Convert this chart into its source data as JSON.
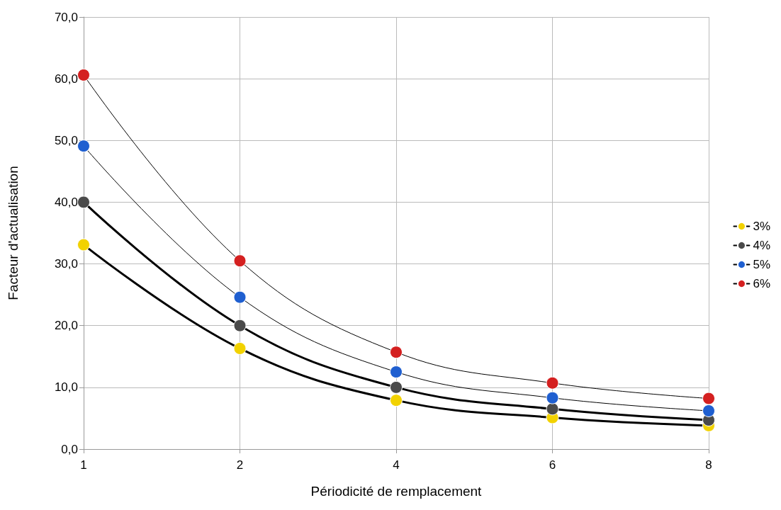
{
  "chart_data": {
    "type": "line",
    "xlabel": "Périodicité de remplacement",
    "ylabel": "Facteur d'actualisation",
    "categories": [
      "1",
      "2",
      "4",
      "6",
      "8"
    ],
    "series": [
      {
        "name": "3%",
        "color": "#f2d200",
        "values": [
          33.1,
          16.3,
          7.9,
          5.1,
          3.8
        ]
      },
      {
        "name": "4%",
        "color": "#4a4a4a",
        "values": [
          40.0,
          20.0,
          10.0,
          6.5,
          4.7
        ]
      },
      {
        "name": "5%",
        "color": "#1f5fd0",
        "values": [
          49.1,
          24.6,
          12.5,
          8.3,
          6.2
        ]
      },
      {
        "name": "6%",
        "color": "#d42020",
        "values": [
          60.6,
          30.5,
          15.7,
          10.7,
          8.2
        ]
      }
    ],
    "ylim": [
      0,
      70
    ],
    "yticks": [
      {
        "value": 0,
        "label": "0,0"
      },
      {
        "value": 10,
        "label": "10,0"
      },
      {
        "value": 20,
        "label": "20,0"
      },
      {
        "value": 30,
        "label": "30,0"
      },
      {
        "value": 40,
        "label": "40,0"
      },
      {
        "value": 50,
        "label": "50,0"
      },
      {
        "value": 60,
        "label": "60,0"
      },
      {
        "value": 70,
        "label": "70,0"
      }
    ],
    "grid": true,
    "legend": "right",
    "marker": "circle"
  }
}
